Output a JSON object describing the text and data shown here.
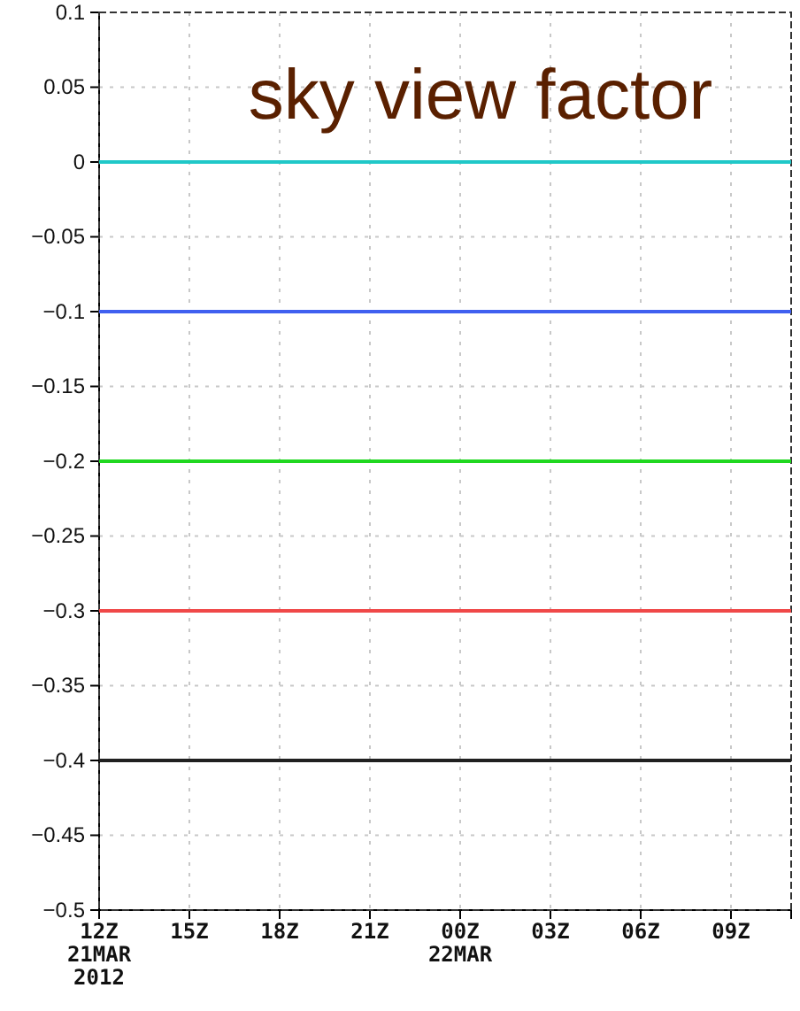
{
  "chart_data": {
    "type": "line",
    "title": "sky view factor",
    "xlim": [
      "2012-03-21T12:00",
      "2012-03-22T11:00"
    ],
    "xticks": [
      {
        "value": "2012-03-21T12:00",
        "label": "12Z\n21MAR\n2012"
      },
      {
        "value": "2012-03-21T15:00",
        "label": "15Z"
      },
      {
        "value": "2012-03-21T18:00",
        "label": "18Z"
      },
      {
        "value": "2012-03-21T21:00",
        "label": "21Z"
      },
      {
        "value": "2012-03-22T00:00",
        "label": "00Z\n22MAR"
      },
      {
        "value": "2012-03-22T03:00",
        "label": "03Z"
      },
      {
        "value": "2012-03-22T06:00",
        "label": "06Z"
      },
      {
        "value": "2012-03-22T09:00",
        "label": "09Z"
      }
    ],
    "ylim": [
      -0.5,
      0.1
    ],
    "yticks": [
      {
        "value": -0.5,
        "label": "−0.5"
      },
      {
        "value": -0.45,
        "label": "−0.45"
      },
      {
        "value": -0.4,
        "label": "−0.4"
      },
      {
        "value": -0.35,
        "label": "−0.35"
      },
      {
        "value": -0.3,
        "label": "−0.3"
      },
      {
        "value": -0.25,
        "label": "−0.25"
      },
      {
        "value": -0.2,
        "label": "−0.2"
      },
      {
        "value": -0.15,
        "label": "−0.15"
      },
      {
        "value": -0.1,
        "label": "−0.1"
      },
      {
        "value": -0.05,
        "label": "−0.05"
      },
      {
        "value": 0,
        "label": "0"
      },
      {
        "value": 0.05,
        "label": "0.05"
      },
      {
        "value": 0.1,
        "label": "0.1"
      }
    ],
    "grid": true,
    "marker": "none",
    "line_style": "solid",
    "x": [
      "2012-03-21T12:00",
      "2012-03-22T11:00"
    ],
    "series": [
      {
        "color": "#20c8c8",
        "values": [
          0,
          0
        ]
      },
      {
        "color": "#4060f0",
        "values": [
          -0.1,
          -0.1
        ]
      },
      {
        "color": "#20d820",
        "values": [
          -0.2,
          -0.2
        ]
      },
      {
        "color": "#f04848",
        "values": [
          -0.3,
          -0.3
        ]
      },
      {
        "color": "#202020",
        "values": [
          -0.4,
          -0.4
        ]
      }
    ]
  }
}
